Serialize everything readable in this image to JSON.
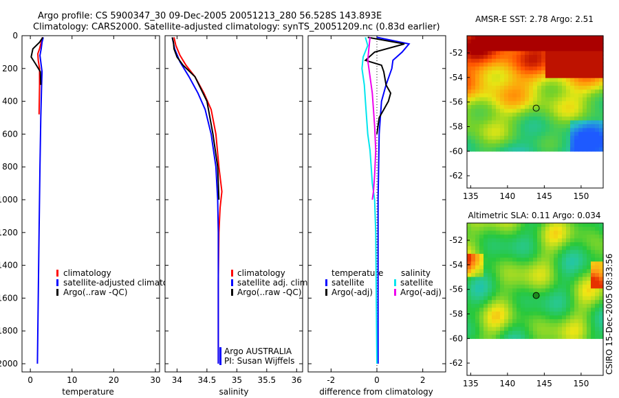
{
  "header": {
    "line1": "Argo profile: CS 5900347_30 09-Dec-2005 20051213_280 56.528S 143.893E",
    "line2": "Climatology: CARS2000. Satellite-adjusted climatology: synTS_20051209.nc (0.83d earlier)"
  },
  "side_label": "CSIRO 15-Dec-2005 08:33:56",
  "colors": {
    "climatology": "#ff0000",
    "satellite": "#0000ff",
    "argo": "#000000",
    "satellite_sal": "#00e5ee",
    "argo_sal": "#ee00ee",
    "marker": "#1c8c1c"
  },
  "chart_data": [
    {
      "type": "line",
      "id": "temperature",
      "xlabel": "temperature",
      "xlim": [
        -2,
        31
      ],
      "ylim": [
        2050,
        0
      ],
      "xticks": [
        0,
        10,
        20,
        30
      ],
      "xtick_labels": [
        "0",
        "10",
        "20",
        "30"
      ],
      "yticks": [
        0,
        200,
        400,
        600,
        800,
        1000,
        1200,
        1400,
        1600,
        1800,
        2000
      ],
      "ytick_labels": [
        "0",
        "200",
        "400",
        "600",
        "800",
        "1000",
        "1200",
        "1400",
        "1600",
        "1800",
        "2000"
      ],
      "series": [
        {
          "name": "climatology",
          "color": "#ff0000",
          "points": [
            [
              2.9,
              10
            ],
            [
              2.6,
              40
            ],
            [
              2.2,
              80
            ],
            [
              1.8,
              110
            ],
            [
              1.9,
              150
            ],
            [
              2.2,
              200
            ],
            [
              2.2,
              300
            ],
            [
              2.1,
              480
            ]
          ]
        },
        {
          "name": "satellite-adjusted climatology",
          "color": "#0000ff",
          "points": [
            [
              3.1,
              10
            ],
            [
              2.8,
              40
            ],
            [
              2.6,
              80
            ],
            [
              2.3,
              120
            ],
            [
              2.6,
              180
            ],
            [
              2.8,
              220
            ],
            [
              2.7,
              300
            ],
            [
              2.5,
              500
            ],
            [
              2.3,
              800
            ],
            [
              2.1,
              1200
            ],
            [
              1.9,
              1600
            ],
            [
              1.7,
              2000
            ]
          ]
        },
        {
          "name": "Argo(..raw -QC)",
          "color": "#000000",
          "points": [
            [
              3.0,
              10
            ],
            [
              2.2,
              40
            ],
            [
              0.6,
              80
            ],
            [
              0.2,
              130
            ],
            [
              1.2,
              170
            ],
            [
              2.4,
              220
            ],
            [
              2.5,
              300
            ]
          ]
        }
      ],
      "legend": {
        "entries": [
          "climatology",
          "satellite-adjusted climatology",
          "Argo(..raw -QC)"
        ]
      }
    },
    {
      "type": "line",
      "id": "salinity",
      "xlabel": "salinity",
      "xlim": [
        33.8,
        36.1
      ],
      "ylim": [
        2050,
        0
      ],
      "xticks": [
        34,
        34.5,
        35,
        35.5,
        36
      ],
      "xtick_labels": [
        "34",
        "34.5",
        "35",
        "35.5",
        "36"
      ],
      "series": [
        {
          "name": "climatology",
          "color": "#ff0000",
          "points": [
            [
              33.95,
              10
            ],
            [
              33.98,
              60
            ],
            [
              34.05,
              120
            ],
            [
              34.15,
              180
            ],
            [
              34.3,
              250
            ],
            [
              34.45,
              350
            ],
            [
              34.57,
              450
            ],
            [
              34.65,
              600
            ],
            [
              34.7,
              800
            ],
            [
              34.75,
              950
            ],
            [
              34.72,
              1050
            ],
            [
              34.7,
              1200
            ],
            [
              34.69,
              1500
            ],
            [
              34.69,
              2000
            ]
          ]
        },
        {
          "name": "satellite adj. clim.",
          "color": "#0000ff",
          "points": [
            [
              33.92,
              10
            ],
            [
              33.96,
              80
            ],
            [
              34.05,
              160
            ],
            [
              34.2,
              250
            ],
            [
              34.35,
              350
            ],
            [
              34.47,
              450
            ],
            [
              34.57,
              600
            ],
            [
              34.65,
              800
            ],
            [
              34.68,
              1000
            ],
            [
              34.69,
              1200
            ],
            [
              34.69,
              1600
            ],
            [
              34.69,
              2000
            ]
          ]
        },
        {
          "name": "Argo(..raw -QC)",
          "color": "#000000",
          "points": [
            [
              33.92,
              10
            ],
            [
              33.94,
              40
            ],
            [
              33.95,
              80
            ],
            [
              34.0,
              130
            ],
            [
              34.1,
              180
            ],
            [
              34.3,
              250
            ],
            [
              34.5,
              400
            ],
            [
              34.6,
              600
            ],
            [
              34.68,
              800
            ],
            [
              34.7,
              1000
            ]
          ]
        }
      ],
      "legend": {
        "entries": [
          "climatology",
          "satellite adj. clim.",
          "Argo(..raw -QC)"
        ]
      },
      "annotations": [
        "Argo AUSTRALIA",
        "PI: Susan Wijffels"
      ]
    },
    {
      "type": "line",
      "id": "difference",
      "xlabel": "difference from climatology",
      "xlim": [
        -3,
        3
      ],
      "ylim": [
        2050,
        0
      ],
      "xticks": [
        -2,
        0,
        2
      ],
      "xtick_labels": [
        "-2",
        "0",
        "2"
      ],
      "series": [
        {
          "name": "temperature satellite",
          "color": "#0000ff",
          "points": [
            [
              0.0,
              10
            ],
            [
              1.4,
              50
            ],
            [
              1.1,
              100
            ],
            [
              0.7,
              150
            ],
            [
              0.65,
              200
            ],
            [
              0.4,
              300
            ],
            [
              0.2,
              400
            ],
            [
              0.1,
              600
            ],
            [
              0.05,
              1000
            ],
            [
              0.05,
              1500
            ],
            [
              0.05,
              2000
            ]
          ]
        },
        {
          "name": "temperature Argo(-adj)",
          "color": "#000000",
          "points": [
            [
              -0.4,
              10
            ],
            [
              1.2,
              50
            ],
            [
              -0.1,
              100
            ],
            [
              -0.5,
              150
            ],
            [
              0.2,
              180
            ],
            [
              0.3,
              220
            ],
            [
              0.4,
              300
            ],
            [
              0.6,
              350
            ],
            [
              0.5,
              400
            ],
            [
              0.3,
              450
            ],
            [
              0.1,
              500
            ],
            [
              0.0,
              600
            ]
          ]
        },
        {
          "name": "salinity satellite",
          "color": "#00e5ee",
          "points": [
            [
              -0.5,
              10
            ],
            [
              -0.4,
              60
            ],
            [
              -0.6,
              130
            ],
            [
              -0.65,
              200
            ],
            [
              -0.55,
              300
            ],
            [
              -0.5,
              400
            ],
            [
              -0.45,
              500
            ],
            [
              -0.4,
              600
            ],
            [
              -0.3,
              700
            ],
            [
              -0.25,
              800
            ],
            [
              -0.2,
              900
            ],
            [
              -0.1,
              1000
            ],
            [
              -0.05,
              1200
            ],
            [
              0.0,
              2000
            ]
          ]
        },
        {
          "name": "salinity Argo(-adj)",
          "color": "#ee00ee",
          "points": [
            [
              -0.3,
              10
            ],
            [
              -0.35,
              80
            ],
            [
              -0.4,
              150
            ],
            [
              -0.3,
              250
            ],
            [
              -0.2,
              350
            ],
            [
              -0.15,
              450
            ],
            [
              -0.1,
              550
            ],
            [
              -0.05,
              700
            ],
            [
              -0.1,
              850
            ],
            [
              -0.15,
              950
            ],
            [
              -0.2,
              1000
            ]
          ]
        }
      ],
      "legend": {
        "col1_heading": "temperature",
        "col2_heading": "salinity",
        "entries": [
          "satellite",
          "Argo(-adj)",
          "satellite",
          "Argo(-adj)"
        ]
      }
    },
    {
      "type": "heatmap",
      "id": "sst_map",
      "title": "AMSR-E SST: 2.78 Argo: 2.51",
      "xlim": [
        134.5,
        153
      ],
      "ylim": [
        -63,
        -50.6
      ],
      "xticks": [
        135,
        140,
        145,
        150
      ],
      "xtick_labels": [
        "135",
        "140",
        "145",
        "150"
      ],
      "yticks": [
        -52,
        -54,
        -56,
        -58,
        -60,
        -62
      ],
      "ytick_labels": [
        "-52",
        "-54",
        "-56",
        "-58",
        "-60",
        "-62"
      ],
      "data_lat_range": [
        -60,
        -50.6
      ],
      "marker": {
        "lon": 143.9,
        "lat": -56.5
      }
    },
    {
      "type": "heatmap",
      "id": "sla_map",
      "title": "Altimetric SLA: 0.11 Argo: 0.034",
      "xlim": [
        134.5,
        153
      ],
      "ylim": [
        -63,
        -50.6
      ],
      "xticks": [
        135,
        140,
        145,
        150
      ],
      "xtick_labels": [
        "135",
        "140",
        "145",
        "150"
      ],
      "yticks": [
        -52,
        -54,
        -56,
        -58,
        -60,
        -62
      ],
      "ytick_labels": [
        "-52",
        "-54",
        "-56",
        "-58",
        "-60",
        "-62"
      ],
      "data_lat_range": [
        -60,
        -50.6
      ],
      "marker": {
        "lon": 143.9,
        "lat": -56.5
      }
    }
  ]
}
